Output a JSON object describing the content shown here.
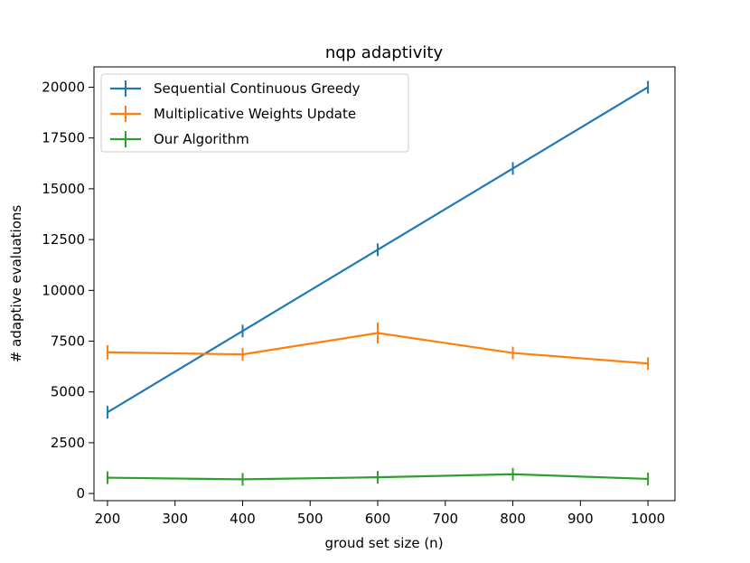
{
  "chart_data": {
    "type": "line",
    "title": "nqp adaptivity",
    "xlabel": "groud set size (n)",
    "ylabel": "# adaptive evaluations",
    "xlim": [
      180,
      1040
    ],
    "ylim": [
      -350,
      21000
    ],
    "x": [
      200,
      400,
      600,
      800,
      1000
    ],
    "xticks": [
      200,
      300,
      400,
      500,
      600,
      700,
      800,
      900,
      1000
    ],
    "yticks": [
      0,
      2500,
      5000,
      7500,
      10000,
      12500,
      15000,
      17500,
      20000
    ],
    "legend_position": "upper left",
    "grid": false,
    "series": [
      {
        "name": "Sequential Continuous Greedy",
        "color": "#1f77b4",
        "values": [
          4000,
          8000,
          12000,
          16000,
          20000
        ],
        "errors": [
          0,
          0,
          0,
          0,
          0
        ]
      },
      {
        "name": "Multiplicative Weights Update",
        "color": "#ff7f0e",
        "values": [
          6950,
          6850,
          7900,
          6920,
          6400
        ],
        "errors": [
          350,
          320,
          520,
          120,
          290
        ]
      },
      {
        "name": "Our Algorithm",
        "color": "#2ca02c",
        "values": [
          780,
          700,
          800,
          950,
          720
        ],
        "errors": [
          0,
          40,
          0,
          0,
          0
        ]
      }
    ]
  }
}
